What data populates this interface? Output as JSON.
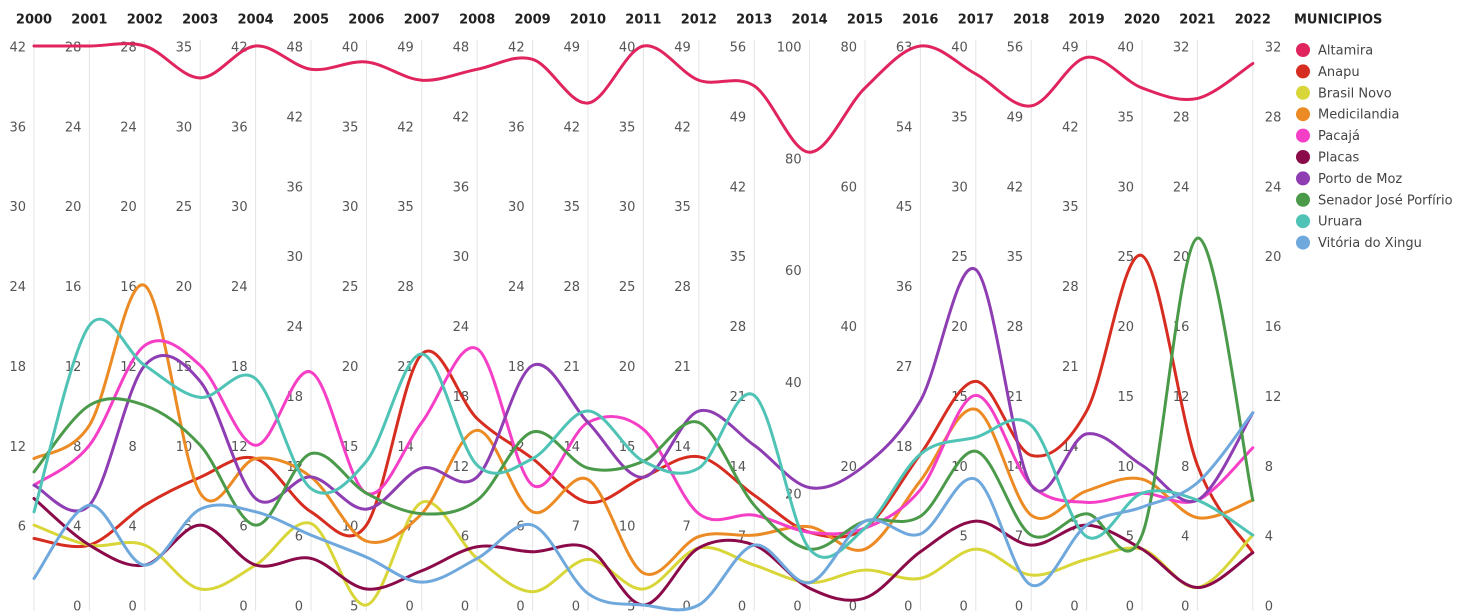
{
  "chart_data": {
    "type": "parallel",
    "legend_title": "MUNICIPIOS",
    "legend": "right",
    "axes": [
      {
        "label": "2000",
        "ylim": [
          0,
          42
        ],
        "yticks": [
          6,
          12,
          18,
          24,
          30,
          36,
          42
        ]
      },
      {
        "label": "2001",
        "ylim": [
          0,
          28
        ],
        "yticks": [
          0,
          4,
          8,
          12,
          16,
          20,
          24,
          28
        ]
      },
      {
        "label": "2002",
        "ylim": [
          0,
          28
        ],
        "yticks": [
          0,
          4,
          8,
          12,
          16,
          20,
          24,
          28
        ]
      },
      {
        "label": "2003",
        "ylim": [
          0,
          35
        ],
        "yticks": [
          5,
          10,
          15,
          20,
          25,
          30,
          35
        ]
      },
      {
        "label": "2004",
        "ylim": [
          0,
          42
        ],
        "yticks": [
          0,
          6,
          12,
          18,
          24,
          30,
          36,
          42
        ]
      },
      {
        "label": "2005",
        "ylim": [
          0,
          48
        ],
        "yticks": [
          0,
          6,
          12,
          18,
          24,
          30,
          36,
          42,
          48
        ]
      },
      {
        "label": "2006",
        "ylim": [
          5,
          40
        ],
        "yticks": [
          5,
          10,
          15,
          20,
          25,
          30,
          35,
          40
        ]
      },
      {
        "label": "2007",
        "ylim": [
          0,
          49
        ],
        "yticks": [
          0,
          7,
          14,
          21,
          28,
          35,
          42,
          49
        ]
      },
      {
        "label": "2008",
        "ylim": [
          0,
          48
        ],
        "yticks": [
          0,
          6,
          12,
          18,
          24,
          30,
          36,
          42,
          48
        ]
      },
      {
        "label": "2009",
        "ylim": [
          0,
          42
        ],
        "yticks": [
          0,
          6,
          12,
          18,
          24,
          30,
          36,
          42
        ]
      },
      {
        "label": "2010",
        "ylim": [
          0,
          49
        ],
        "yticks": [
          0,
          7,
          14,
          21,
          28,
          35,
          42,
          49
        ]
      },
      {
        "label": "2011",
        "ylim": [
          5,
          40
        ],
        "yticks": [
          5,
          10,
          15,
          20,
          25,
          30,
          35,
          40
        ]
      },
      {
        "label": "2012",
        "ylim": [
          0,
          49
        ],
        "yticks": [
          0,
          7,
          14,
          21,
          28,
          35,
          42,
          49
        ]
      },
      {
        "label": "2013",
        "ylim": [
          0,
          56
        ],
        "yticks": [
          0,
          7,
          14,
          21,
          28,
          35,
          42,
          49,
          56
        ]
      },
      {
        "label": "2014",
        "ylim": [
          0,
          100
        ],
        "yticks": [
          0,
          20,
          40,
          60,
          80,
          100
        ]
      },
      {
        "label": "2015",
        "ylim": [
          0,
          80
        ],
        "yticks": [
          0,
          20,
          40,
          60,
          80
        ]
      },
      {
        "label": "2016",
        "ylim": [
          0,
          63
        ],
        "yticks": [
          0,
          18,
          27,
          36,
          45,
          54,
          63
        ]
      },
      {
        "label": "2017",
        "ylim": [
          0,
          40
        ],
        "yticks": [
          0,
          5,
          10,
          15,
          20,
          25,
          30,
          35,
          40
        ]
      },
      {
        "label": "2018",
        "ylim": [
          0,
          56
        ],
        "yticks": [
          0,
          7,
          14,
          21,
          28,
          35,
          42,
          49,
          56
        ]
      },
      {
        "label": "2019",
        "ylim": [
          0,
          49
        ],
        "yticks": [
          0,
          7,
          14,
          21,
          28,
          35,
          42,
          49
        ]
      },
      {
        "label": "2020",
        "ylim": [
          0,
          40
        ],
        "yticks": [
          0,
          5,
          10,
          15,
          20,
          25,
          30,
          35,
          40
        ]
      },
      {
        "label": "2021",
        "ylim": [
          0,
          32
        ],
        "yticks": [
          0,
          4,
          8,
          12,
          16,
          20,
          24,
          28,
          32
        ]
      },
      {
        "label": "2022",
        "ylim": [
          0,
          32
        ],
        "yticks": [
          0,
          4,
          8,
          12,
          16,
          20,
          24,
          28,
          32
        ]
      }
    ],
    "series": [
      {
        "name": "Altamira",
        "color": "#e0245e",
        "values": [
          42,
          28,
          28,
          33,
          42,
          46,
          39,
          46,
          46,
          41,
          44,
          40,
          46,
          52,
          81,
          74,
          63,
          38,
          50,
          48,
          37,
          29,
          31
        ]
      },
      {
        "name": "Anapu",
        "color": "#d62d20",
        "values": [
          5,
          3,
          5,
          8,
          11,
          8,
          10,
          22,
          16,
          11,
          9,
          13,
          13,
          11,
          13,
          11,
          17,
          16,
          15,
          17,
          25,
          8,
          3
        ]
      },
      {
        "name": "Brasil Novo",
        "color": "#d9d63a",
        "values": [
          6,
          3,
          3,
          1,
          3,
          7,
          5,
          9,
          4,
          1,
          4,
          6,
          5,
          4,
          4,
          5,
          3,
          4,
          3,
          4,
          4,
          1,
          4
        ]
      },
      {
        "name": "Medicilandia",
        "color": "#ec8a23",
        "values": [
          11,
          9,
          16,
          7,
          11,
          11,
          9,
          8,
          15,
          7,
          11,
          7,
          6,
          7,
          14,
          8,
          14,
          14,
          9,
          10,
          9,
          5,
          6
        ]
      },
      {
        "name": "Pacajá",
        "color": "#f53fc6",
        "values": [
          9,
          8,
          13,
          15,
          12,
          20,
          12,
          16,
          22,
          9,
          16,
          16,
          8,
          9,
          13,
          11,
          13,
          15,
          12,
          9,
          8,
          6,
          9
        ]
      },
      {
        "name": "Placas",
        "color": "#8b0a4a",
        "values": [
          8,
          3,
          2,
          5,
          3,
          4,
          6,
          3,
          5,
          4,
          5,
          5,
          5,
          6,
          3,
          1,
          6,
          6,
          6,
          7,
          4,
          1,
          3
        ]
      },
      {
        "name": "Porto de Moz",
        "color": "#8e3db3",
        "values": [
          9,
          5,
          12,
          14,
          8,
          11,
          11,
          12,
          11,
          18,
          16,
          13,
          17,
          16,
          21,
          20,
          23,
          24,
          12,
          15,
          10,
          6,
          11
        ]
      },
      {
        "name": "Senador José Porfírio",
        "color": "#4a9a4a",
        "values": [
          10,
          10,
          10,
          10,
          6,
          13,
          12,
          8,
          9,
          13,
          12,
          14,
          16,
          10,
          10,
          12,
          10,
          11,
          7,
          8,
          5,
          21,
          6
        ]
      },
      {
        "name": "Uruara",
        "color": "#4fc3b5",
        "values": [
          7,
          14,
          12,
          13,
          17,
          10,
          14,
          22,
          12,
          11,
          17,
          14,
          12,
          21,
          10,
          11,
          17,
          12,
          18,
          6,
          8,
          6,
          4
        ]
      },
      {
        "name": "Vitória do Xingu",
        "color": "#6fa8dc",
        "values": [
          2,
          5,
          2,
          6,
          7,
          6,
          8,
          2,
          4,
          6,
          1,
          5,
          0,
          6,
          4,
          12,
          8,
          9,
          2,
          7,
          7,
          7,
          11
        ]
      }
    ]
  }
}
